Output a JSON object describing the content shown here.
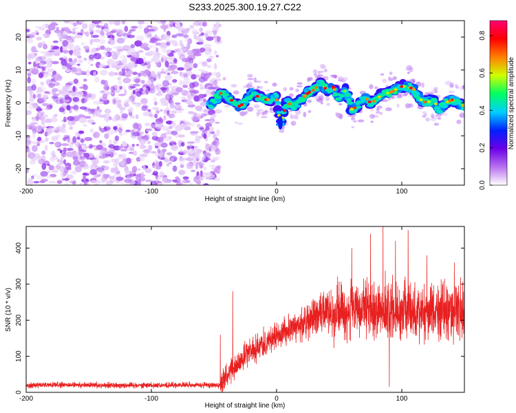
{
  "title": "S233.2025.300.19.27.C22",
  "spectrogram": {
    "type": "heatmap",
    "xlabel": "Height of straight line (km)",
    "ylabel": "Frequency (Hz)",
    "xlim": [
      -200,
      150
    ],
    "ylim": [
      -25,
      25
    ],
    "xticks": [
      -200,
      -100,
      0,
      100
    ],
    "yticks": [
      -20,
      -10,
      0,
      10,
      20
    ],
    "noise_region_x": [
      -200,
      -52
    ],
    "signal_ridge": {
      "x": [
        -53,
        -45,
        -40,
        -30,
        -25,
        -20,
        -10,
        -5,
        0,
        3,
        8,
        15,
        20,
        25,
        30,
        35,
        40,
        45,
        50,
        55,
        60,
        65,
        70,
        75,
        80,
        85,
        90,
        95,
        100,
        105,
        110,
        115,
        120,
        125,
        130,
        135,
        140,
        145,
        150
      ],
      "freq": [
        -1,
        3,
        2,
        -1,
        0,
        3,
        1,
        1,
        2,
        -7,
        0,
        -1,
        1,
        3,
        4,
        6,
        4,
        5,
        1,
        4,
        -2,
        -1,
        2,
        0,
        1,
        3,
        3,
        4,
        5,
        5,
        4,
        1,
        0,
        1,
        -2,
        0,
        1,
        0,
        -1
      ]
    },
    "colorbar": {
      "label": "Normalized spectral amplitude",
      "range": [
        0.0,
        0.88
      ],
      "ticks": [
        "0.0",
        "0.2",
        "0.4",
        "0.6",
        "0.8"
      ],
      "colors": [
        "#ffffff",
        "#b870f0",
        "#6a00e8",
        "#0020ff",
        "#00d0ff",
        "#00ff60",
        "#d0ff00",
        "#ff8000",
        "#ff0000",
        "#ff0070"
      ]
    }
  },
  "snr": {
    "type": "line",
    "xlabel": "Height of straight line (km)",
    "ylabel": "SNR (10 * v/v)",
    "xlim": [
      -200,
      150
    ],
    "ylim": [
      0,
      460
    ],
    "xticks": [
      -200,
      -100,
      0,
      100
    ],
    "yticks": [
      0,
      100,
      200,
      300,
      400
    ],
    "color": "#e82020",
    "segments": [
      {
        "x": [
          -200,
          -45
        ],
        "mean": 20,
        "spread": 7
      },
      {
        "x": [
          -45,
          -20
        ],
        "mean": [
          25,
          120
        ],
        "spread": 30
      },
      {
        "x": [
          -20,
          20
        ],
        "mean": [
          120,
          190
        ],
        "spread": 35
      },
      {
        "x": [
          20,
          40
        ],
        "mean": [
          190,
          225
        ],
        "spread": 45
      },
      {
        "x": [
          40,
          150
        ],
        "mean": 225,
        "spread": 70
      }
    ],
    "spikes": [
      [
        -35,
        280
      ],
      [
        -45,
        160
      ],
      [
        85,
        460
      ],
      [
        105,
        450
      ],
      [
        95,
        420
      ],
      [
        75,
        440
      ],
      [
        60,
        400
      ],
      [
        120,
        380
      ],
      [
        142,
        360
      ],
      [
        90,
        15
      ]
    ]
  }
}
